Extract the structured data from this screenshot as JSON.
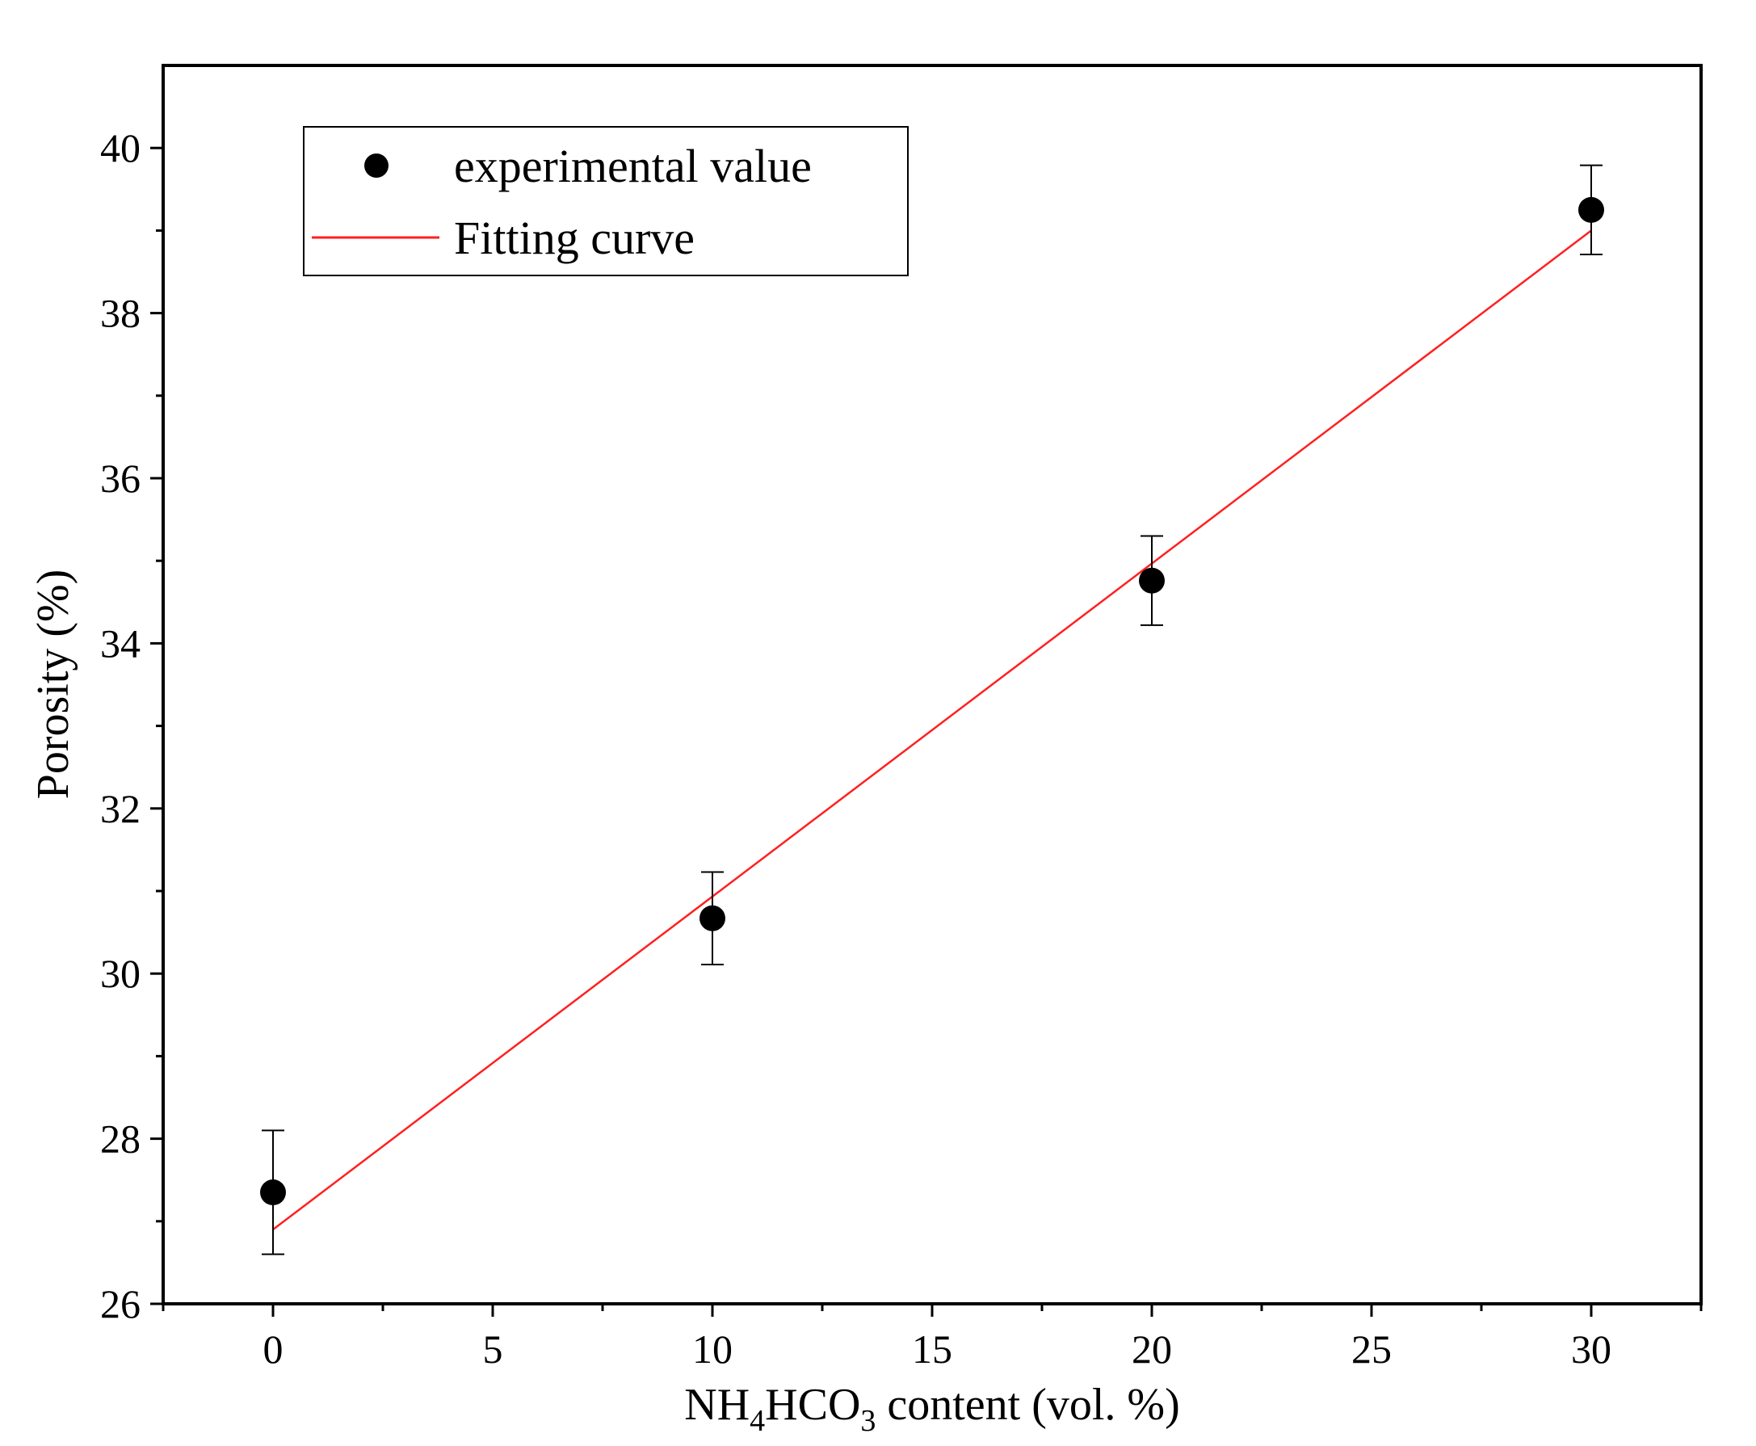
{
  "chart_data": {
    "type": "scatter",
    "x": [
      0,
      10,
      20,
      30
    ],
    "series": [
      {
        "name": "experimental value",
        "kind": "points",
        "values": [
          27.35,
          30.67,
          34.76,
          39.25
        ],
        "error": [
          0.75,
          0.56,
          0.54,
          0.54
        ]
      },
      {
        "name": "Fitting curve",
        "kind": "line",
        "x": [
          0,
          30
        ],
        "values": [
          26.9,
          39.0
        ]
      }
    ],
    "xlim": [
      -2.5,
      32.5
    ],
    "ylim": [
      26,
      41
    ],
    "xticks": [
      0,
      5,
      10,
      15,
      20,
      25,
      30
    ],
    "yticks": [
      26,
      28,
      30,
      32,
      34,
      36,
      38,
      40
    ],
    "xlabel": {
      "part1": "NH",
      "sub1": "4",
      "part2": "HCO",
      "sub2": "3",
      "part3": " content (vol. %)"
    },
    "ylabel": "Porosity (%)",
    "legend_position": "top-left",
    "grid": false,
    "colors": {
      "points": "#000000",
      "fit_line": "#ff2020",
      "axes": "#000000"
    }
  }
}
